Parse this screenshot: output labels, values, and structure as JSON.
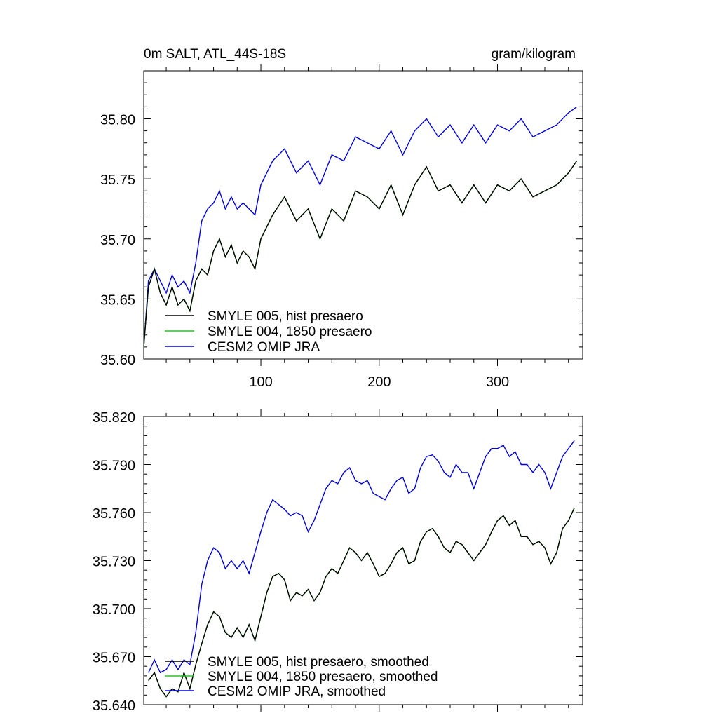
{
  "chart_data": [
    {
      "type": "line",
      "title_left": "0m SALT, ATL_44S-18S",
      "title_right": "gram/kilogram",
      "xlim": [
        1,
        372
      ],
      "ylim": [
        35.6,
        35.84
      ],
      "xticks": [
        100,
        200,
        300
      ],
      "xtick_labels": [
        "100",
        "200",
        "300"
      ],
      "yticks": [
        35.6,
        35.65,
        35.7,
        35.75,
        35.8
      ],
      "ytick_labels": [
        "35.60",
        "35.65",
        "35.70",
        "35.75",
        "35.80"
      ],
      "legend_position": "bottom-left",
      "series": [
        {
          "name": "SMYLE 005, hist presaero",
          "color": "#000000",
          "x": [
            1,
            5,
            10,
            15,
            20,
            25,
            30,
            35,
            40,
            45,
            50,
            55,
            60,
            65,
            70,
            75,
            80,
            85,
            90,
            95,
            100,
            110,
            120,
            130,
            140,
            150,
            160,
            170,
            180,
            190,
            200,
            210,
            220,
            230,
            240,
            250,
            260,
            270,
            280,
            290,
            300,
            310,
            320,
            330,
            340,
            350,
            360,
            367
          ],
          "values": [
            35.61,
            35.66,
            35.675,
            35.655,
            35.645,
            35.66,
            35.645,
            35.65,
            35.64,
            35.665,
            35.675,
            35.67,
            35.69,
            35.7,
            35.685,
            35.695,
            35.68,
            35.69,
            35.685,
            35.675,
            35.7,
            35.72,
            35.735,
            35.715,
            35.725,
            35.7,
            35.725,
            35.715,
            35.74,
            35.735,
            35.725,
            35.745,
            35.72,
            35.745,
            35.76,
            35.74,
            35.745,
            35.73,
            35.745,
            35.73,
            35.745,
            35.74,
            35.75,
            35.735,
            35.74,
            35.745,
            35.755,
            35.765
          ]
        },
        {
          "name": "SMYLE 004, 1850 presaero",
          "color": "#00dd00",
          "x": [
            1,
            5,
            10,
            15,
            20,
            25,
            30,
            35,
            40,
            45,
            50,
            55,
            60,
            65,
            70,
            75,
            80,
            85,
            90,
            95,
            100,
            110,
            120,
            130,
            140,
            150,
            160,
            170,
            180,
            190,
            200,
            210,
            220,
            230,
            240,
            250,
            260,
            270,
            280,
            290,
            300,
            310,
            320,
            330,
            340,
            350,
            360,
            367
          ],
          "values": [
            35.61,
            35.66,
            35.675,
            35.655,
            35.645,
            35.66,
            35.645,
            35.65,
            35.64,
            35.665,
            35.675,
            35.67,
            35.69,
            35.7,
            35.685,
            35.695,
            35.68,
            35.69,
            35.685,
            35.675,
            35.7,
            35.72,
            35.735,
            35.715,
            35.725,
            35.7,
            35.725,
            35.715,
            35.74,
            35.735,
            35.725,
            35.745,
            35.72,
            35.745,
            35.76,
            35.74,
            35.745,
            35.73,
            35.745,
            35.73,
            35.745,
            35.74,
            35.75,
            35.735,
            35.74,
            35.745,
            35.755,
            35.765
          ]
        },
        {
          "name": "CESM2 OMIP JRA",
          "color": "#0000dd",
          "x": [
            1,
            5,
            10,
            15,
            20,
            25,
            30,
            35,
            40,
            45,
            50,
            55,
            60,
            65,
            70,
            75,
            80,
            85,
            90,
            95,
            100,
            110,
            120,
            130,
            140,
            150,
            160,
            170,
            180,
            190,
            200,
            210,
            220,
            230,
            240,
            250,
            260,
            270,
            280,
            290,
            300,
            310,
            320,
            330,
            340,
            350,
            360,
            367
          ],
          "values": [
            35.61,
            35.665,
            35.675,
            35.665,
            35.655,
            35.67,
            35.66,
            35.665,
            35.655,
            35.68,
            35.715,
            35.725,
            35.73,
            35.74,
            35.725,
            35.735,
            35.725,
            35.73,
            35.725,
            35.72,
            35.745,
            35.765,
            35.775,
            35.755,
            35.765,
            35.745,
            35.77,
            35.765,
            35.785,
            35.78,
            35.775,
            35.79,
            35.77,
            35.79,
            35.8,
            35.785,
            35.795,
            35.78,
            35.795,
            35.78,
            35.795,
            35.79,
            35.8,
            35.785,
            35.79,
            35.795,
            35.805,
            35.81
          ]
        }
      ]
    },
    {
      "type": "line",
      "xlim": [
        1,
        372
      ],
      "ylim": [
        35.64,
        35.82
      ],
      "xticks": [
        100,
        200,
        300
      ],
      "yticks": [
        35.64,
        35.67,
        35.7,
        35.73,
        35.76,
        35.79,
        35.82
      ],
      "ytick_labels": [
        "35.640",
        "35.670",
        "35.700",
        "35.730",
        "35.760",
        "35.790",
        "35.820"
      ],
      "legend_position": "bottom-left",
      "series": [
        {
          "name": "SMYLE 005, hist presaero, smoothed",
          "color": "#000000",
          "x": [
            5,
            10,
            15,
            20,
            25,
            30,
            35,
            40,
            45,
            50,
            55,
            60,
            65,
            70,
            75,
            80,
            85,
            90,
            95,
            100,
            105,
            110,
            115,
            120,
            125,
            130,
            135,
            140,
            145,
            150,
            155,
            160,
            165,
            170,
            175,
            180,
            185,
            190,
            195,
            200,
            205,
            210,
            215,
            220,
            225,
            230,
            235,
            240,
            245,
            250,
            255,
            260,
            265,
            270,
            275,
            280,
            285,
            290,
            295,
            300,
            305,
            310,
            315,
            320,
            325,
            330,
            335,
            340,
            345,
            350,
            355,
            360,
            365
          ],
          "values": [
            35.655,
            35.66,
            35.65,
            35.645,
            35.65,
            35.648,
            35.66,
            35.65,
            35.665,
            35.678,
            35.69,
            35.698,
            35.695,
            35.685,
            35.682,
            35.688,
            35.682,
            35.69,
            35.68,
            35.695,
            35.71,
            35.72,
            35.722,
            35.718,
            35.705,
            35.71,
            35.708,
            35.712,
            35.705,
            35.71,
            35.72,
            35.725,
            35.722,
            35.73,
            35.738,
            35.735,
            35.73,
            35.735,
            35.728,
            35.72,
            35.722,
            35.728,
            35.735,
            35.738,
            35.728,
            35.73,
            35.742,
            35.748,
            35.75,
            35.745,
            35.738,
            35.735,
            35.742,
            35.74,
            35.735,
            35.73,
            35.735,
            35.74,
            35.748,
            35.755,
            35.758,
            35.752,
            35.755,
            35.745,
            35.745,
            35.74,
            35.742,
            35.738,
            35.728,
            35.735,
            35.75,
            35.755,
            35.763
          ]
        },
        {
          "name": "SMYLE 004, 1850 presaero, smoothed",
          "color": "#00dd00",
          "x": [
            5,
            10,
            15,
            20,
            25,
            30,
            35,
            40,
            45,
            50,
            55,
            60,
            65,
            70,
            75,
            80,
            85,
            90,
            95,
            100,
            105,
            110,
            115,
            120,
            125,
            130,
            135,
            140,
            145,
            150,
            155,
            160,
            165,
            170,
            175,
            180,
            185,
            190,
            195,
            200,
            205,
            210,
            215,
            220,
            225,
            230,
            235,
            240,
            245,
            250,
            255,
            260,
            265,
            270,
            275,
            280,
            285,
            290,
            295,
            300,
            305,
            310,
            315,
            320,
            325,
            330,
            335,
            340,
            345,
            350,
            355,
            360,
            365
          ],
          "values": [
            35.655,
            35.66,
            35.65,
            35.645,
            35.65,
            35.648,
            35.66,
            35.65,
            35.665,
            35.678,
            35.69,
            35.698,
            35.695,
            35.685,
            35.682,
            35.688,
            35.682,
            35.69,
            35.68,
            35.695,
            35.71,
            35.72,
            35.722,
            35.718,
            35.705,
            35.71,
            35.708,
            35.712,
            35.705,
            35.71,
            35.72,
            35.725,
            35.722,
            35.73,
            35.738,
            35.735,
            35.73,
            35.735,
            35.728,
            35.72,
            35.722,
            35.728,
            35.735,
            35.738,
            35.728,
            35.73,
            35.742,
            35.748,
            35.75,
            35.745,
            35.738,
            35.735,
            35.742,
            35.74,
            35.735,
            35.73,
            35.735,
            35.74,
            35.748,
            35.755,
            35.758,
            35.752,
            35.755,
            35.745,
            35.745,
            35.74,
            35.742,
            35.738,
            35.728,
            35.735,
            35.75,
            35.755,
            35.763
          ]
        },
        {
          "name": "CESM2 OMIP JRA, smoothed",
          "color": "#0000dd",
          "x": [
            5,
            10,
            15,
            20,
            25,
            30,
            35,
            40,
            45,
            50,
            55,
            60,
            65,
            70,
            75,
            80,
            85,
            90,
            95,
            100,
            105,
            110,
            115,
            120,
            125,
            130,
            135,
            140,
            145,
            150,
            155,
            160,
            165,
            170,
            175,
            180,
            185,
            190,
            195,
            200,
            205,
            210,
            215,
            220,
            225,
            230,
            235,
            240,
            245,
            250,
            255,
            260,
            265,
            270,
            275,
            280,
            285,
            290,
            295,
            300,
            305,
            310,
            315,
            320,
            325,
            330,
            335,
            340,
            345,
            350,
            355,
            360,
            365
          ],
          "values": [
            35.66,
            35.668,
            35.66,
            35.662,
            35.668,
            35.662,
            35.668,
            35.665,
            35.685,
            35.715,
            35.73,
            35.738,
            35.735,
            35.725,
            35.73,
            35.725,
            35.73,
            35.722,
            35.735,
            35.748,
            35.76,
            35.768,
            35.765,
            35.762,
            35.758,
            35.76,
            35.758,
            35.748,
            35.755,
            35.765,
            35.775,
            35.78,
            35.778,
            35.785,
            35.788,
            35.78,
            35.778,
            35.78,
            35.772,
            35.77,
            35.768,
            35.775,
            35.78,
            35.782,
            35.772,
            35.775,
            35.788,
            35.795,
            35.796,
            35.792,
            35.785,
            35.782,
            35.79,
            35.785,
            35.785,
            35.775,
            35.785,
            35.795,
            35.8,
            35.8,
            35.802,
            35.795,
            35.798,
            35.79,
            35.79,
            35.785,
            35.79,
            35.785,
            35.775,
            35.785,
            35.795,
            35.8,
            35.805
          ]
        }
      ]
    }
  ]
}
